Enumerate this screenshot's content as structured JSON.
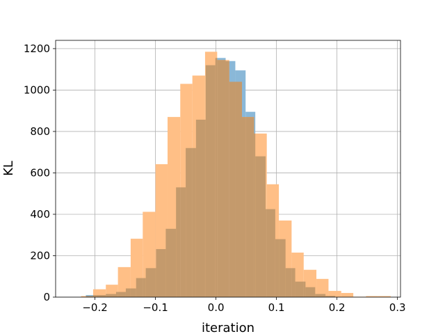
{
  "chart_data": {
    "type": "bar",
    "title": "",
    "xlabel": "iteration",
    "ylabel": "KL",
    "xlim": [
      -0.265,
      0.305
    ],
    "ylim": [
      0,
      1240
    ],
    "xticks": [
      -0.2,
      -0.1,
      0.0,
      0.1,
      0.2,
      0.3
    ],
    "xtick_labels": [
      "−0.2",
      "−0.1",
      "0.0",
      "0.1",
      "0.2",
      "0.3"
    ],
    "yticks": [
      0,
      200,
      400,
      600,
      800,
      1000,
      1200
    ],
    "ytick_labels": [
      "0",
      "200",
      "400",
      "600",
      "800",
      "1000",
      "1200"
    ],
    "grid": true,
    "overlap_color": "#c49a6c",
    "series": [
      {
        "color": "#8ab8d8",
        "bins": [
          [
            -0.215,
            -0.198,
            10
          ],
          [
            -0.198,
            -0.182,
            10
          ],
          [
            -0.182,
            -0.165,
            15
          ],
          [
            -0.165,
            -0.149,
            25
          ],
          [
            -0.149,
            -0.132,
            42
          ],
          [
            -0.132,
            -0.116,
            92
          ],
          [
            -0.116,
            -0.099,
            140
          ],
          [
            -0.099,
            -0.083,
            232
          ],
          [
            -0.083,
            -0.066,
            330
          ],
          [
            -0.066,
            -0.05,
            530
          ],
          [
            -0.05,
            -0.033,
            720
          ],
          [
            -0.033,
            -0.017,
            857
          ],
          [
            -0.017,
            -0.001,
            1120
          ],
          [
            -0.001,
            0.016,
            1155
          ],
          [
            0.016,
            0.032,
            1140
          ],
          [
            0.032,
            0.049,
            1095
          ],
          [
            0.049,
            0.065,
            895
          ],
          [
            0.065,
            0.082,
            680
          ],
          [
            0.082,
            0.098,
            425
          ],
          [
            0.098,
            0.115,
            280
          ],
          [
            0.115,
            0.131,
            140
          ],
          [
            0.131,
            0.148,
            75
          ],
          [
            0.148,
            0.164,
            48
          ],
          [
            0.164,
            0.181,
            15
          ],
          [
            0.181,
            0.197,
            6
          ]
        ]
      },
      {
        "color": "#ffbf86",
        "bins": [
          [
            -0.223,
            -0.203,
            5
          ],
          [
            -0.203,
            -0.182,
            38
          ],
          [
            -0.182,
            -0.162,
            60
          ],
          [
            -0.162,
            -0.141,
            145
          ],
          [
            -0.141,
            -0.121,
            282
          ],
          [
            -0.121,
            -0.1,
            412
          ],
          [
            -0.1,
            -0.08,
            642
          ],
          [
            -0.08,
            -0.059,
            870
          ],
          [
            -0.059,
            -0.039,
            1030
          ],
          [
            -0.039,
            -0.018,
            1070
          ],
          [
            -0.018,
            0.002,
            1185
          ],
          [
            0.002,
            0.022,
            1145
          ],
          [
            0.022,
            0.043,
            1040
          ],
          [
            0.043,
            0.063,
            870
          ],
          [
            0.063,
            0.084,
            790
          ],
          [
            0.084,
            0.104,
            545
          ],
          [
            0.104,
            0.125,
            370
          ],
          [
            0.125,
            0.145,
            215
          ],
          [
            0.145,
            0.166,
            132
          ],
          [
            0.166,
            0.186,
            88
          ],
          [
            0.186,
            0.207,
            30
          ],
          [
            0.207,
            0.227,
            20
          ],
          [
            0.227,
            0.248,
            2
          ],
          [
            0.248,
            0.268,
            5
          ],
          [
            0.268,
            0.289,
            5
          ]
        ]
      }
    ]
  }
}
